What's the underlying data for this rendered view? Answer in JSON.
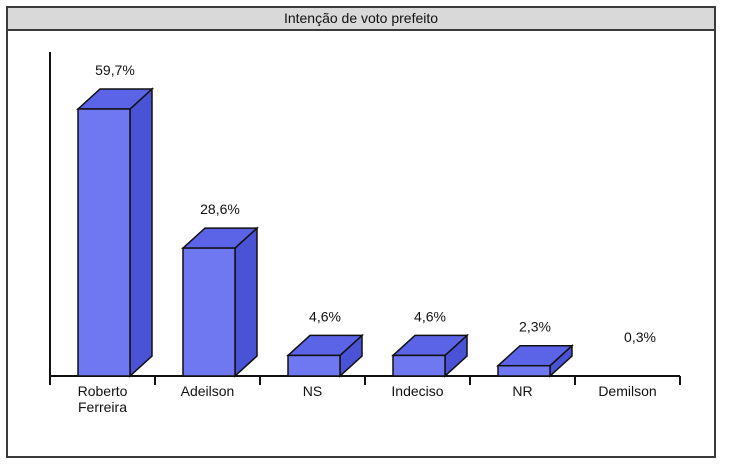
{
  "chart_data": {
    "type": "bar",
    "title": "Intenção de voto prefeito",
    "categories": [
      [
        "Roberto",
        "Ferreira"
      ],
      [
        "Adeilson"
      ],
      [
        "NS"
      ],
      [
        "Indeciso"
      ],
      [
        "NR"
      ],
      [
        "Demilson"
      ]
    ],
    "values": [
      59.7,
      28.6,
      4.6,
      4.6,
      2.3,
      0.3
    ],
    "data_labels": [
      "59,7%",
      "28,6%",
      "4,6%",
      "4,6%",
      "2,3%",
      "0,3%"
    ],
    "xlabel": "",
    "ylabel": "",
    "ylim": [
      0,
      60
    ],
    "grid": false,
    "legend": "none",
    "style": "3d",
    "colors": {
      "bar_front": "#6f78f0",
      "bar_top": "#5b63e6",
      "bar_side": "#4a52d6",
      "outline": "#111111"
    }
  }
}
